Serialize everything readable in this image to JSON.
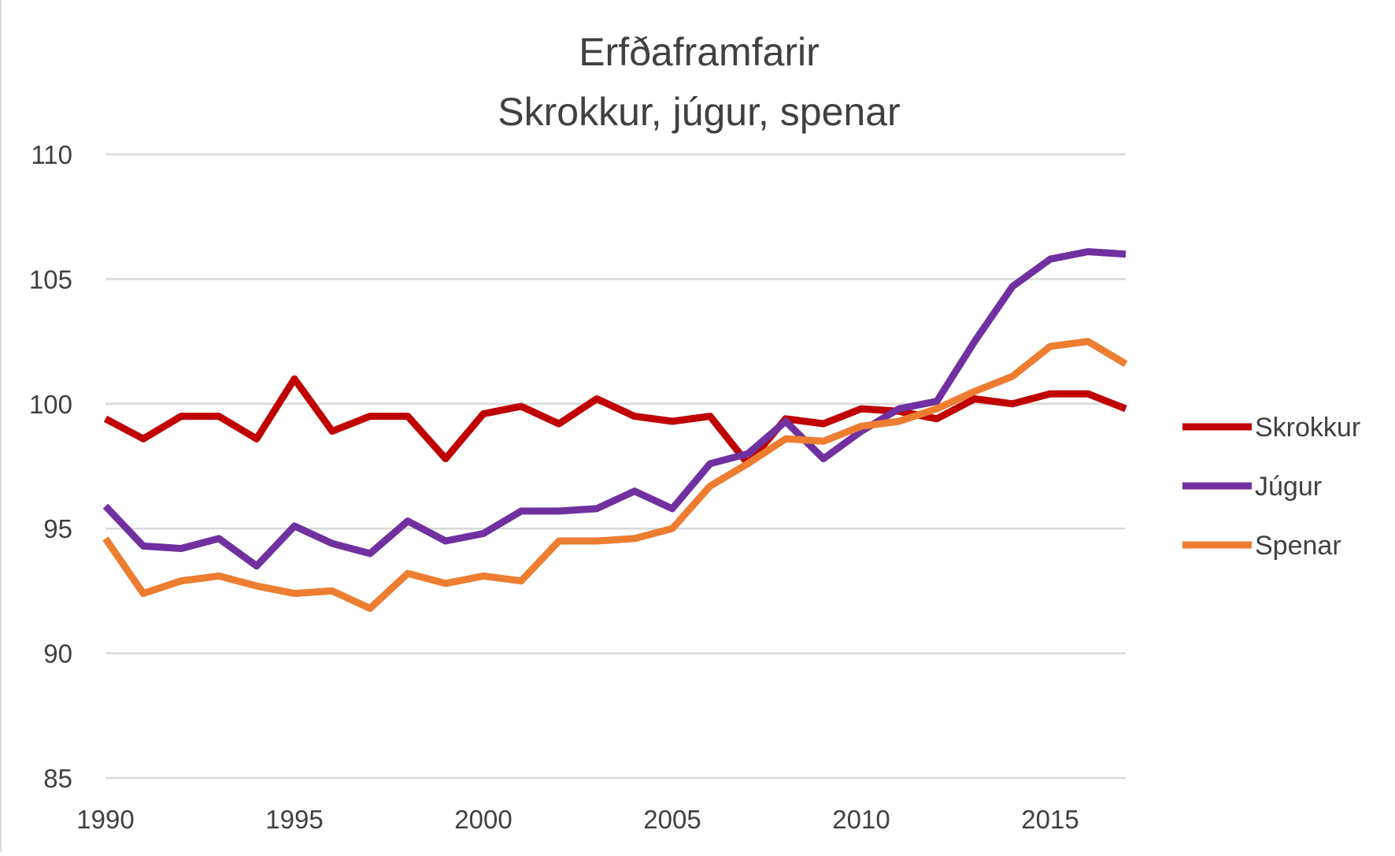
{
  "chart_data": {
    "type": "line",
    "title": "Erfðaframfarir",
    "subtitle": "Skrokkur, júgur, spenar",
    "xlabel": "",
    "ylabel": "",
    "xlim": [
      1990,
      2017
    ],
    "ylim": [
      85,
      110
    ],
    "x_ticks": [
      1990,
      1995,
      2000,
      2005,
      2010,
      2015
    ],
    "y_ticks": [
      85,
      90,
      95,
      100,
      105,
      110
    ],
    "grid": true,
    "legend_position": "right",
    "x": [
      1990,
      1991,
      1992,
      1993,
      1994,
      1995,
      1996,
      1997,
      1998,
      1999,
      2000,
      2001,
      2002,
      2003,
      2004,
      2005,
      2006,
      2007,
      2008,
      2009,
      2010,
      2011,
      2012,
      2013,
      2014,
      2015,
      2016,
      2017
    ],
    "series": [
      {
        "name": "Skrokkur",
        "color": "#c00000",
        "values": [
          99.4,
          98.6,
          99.5,
          99.5,
          98.6,
          101.0,
          98.9,
          99.5,
          99.5,
          97.8,
          99.6,
          99.9,
          99.2,
          100.2,
          99.5,
          99.3,
          99.5,
          97.6,
          99.4,
          99.2,
          99.8,
          99.7,
          99.4,
          100.2,
          100.0,
          100.4,
          100.4,
          99.8
        ]
      },
      {
        "name": "Júgur",
        "color": "#7030a0",
        "values": [
          95.9,
          94.3,
          94.2,
          94.6,
          93.5,
          95.1,
          94.4,
          94.0,
          95.3,
          94.5,
          94.8,
          95.7,
          95.7,
          95.8,
          96.5,
          95.8,
          97.6,
          98.0,
          99.3,
          97.8,
          98.9,
          99.8,
          100.1,
          102.5,
          104.7,
          105.8,
          106.1,
          106.0
        ]
      },
      {
        "name": "Spenar",
        "color": "#ed7d31",
        "values": [
          94.6,
          92.4,
          92.9,
          93.1,
          92.7,
          92.4,
          92.5,
          91.8,
          93.2,
          92.8,
          93.1,
          92.9,
          94.5,
          94.5,
          94.6,
          95.0,
          96.7,
          97.6,
          98.6,
          98.5,
          99.1,
          99.3,
          99.8,
          100.5,
          101.1,
          102.3,
          102.5,
          101.6
        ]
      }
    ]
  }
}
